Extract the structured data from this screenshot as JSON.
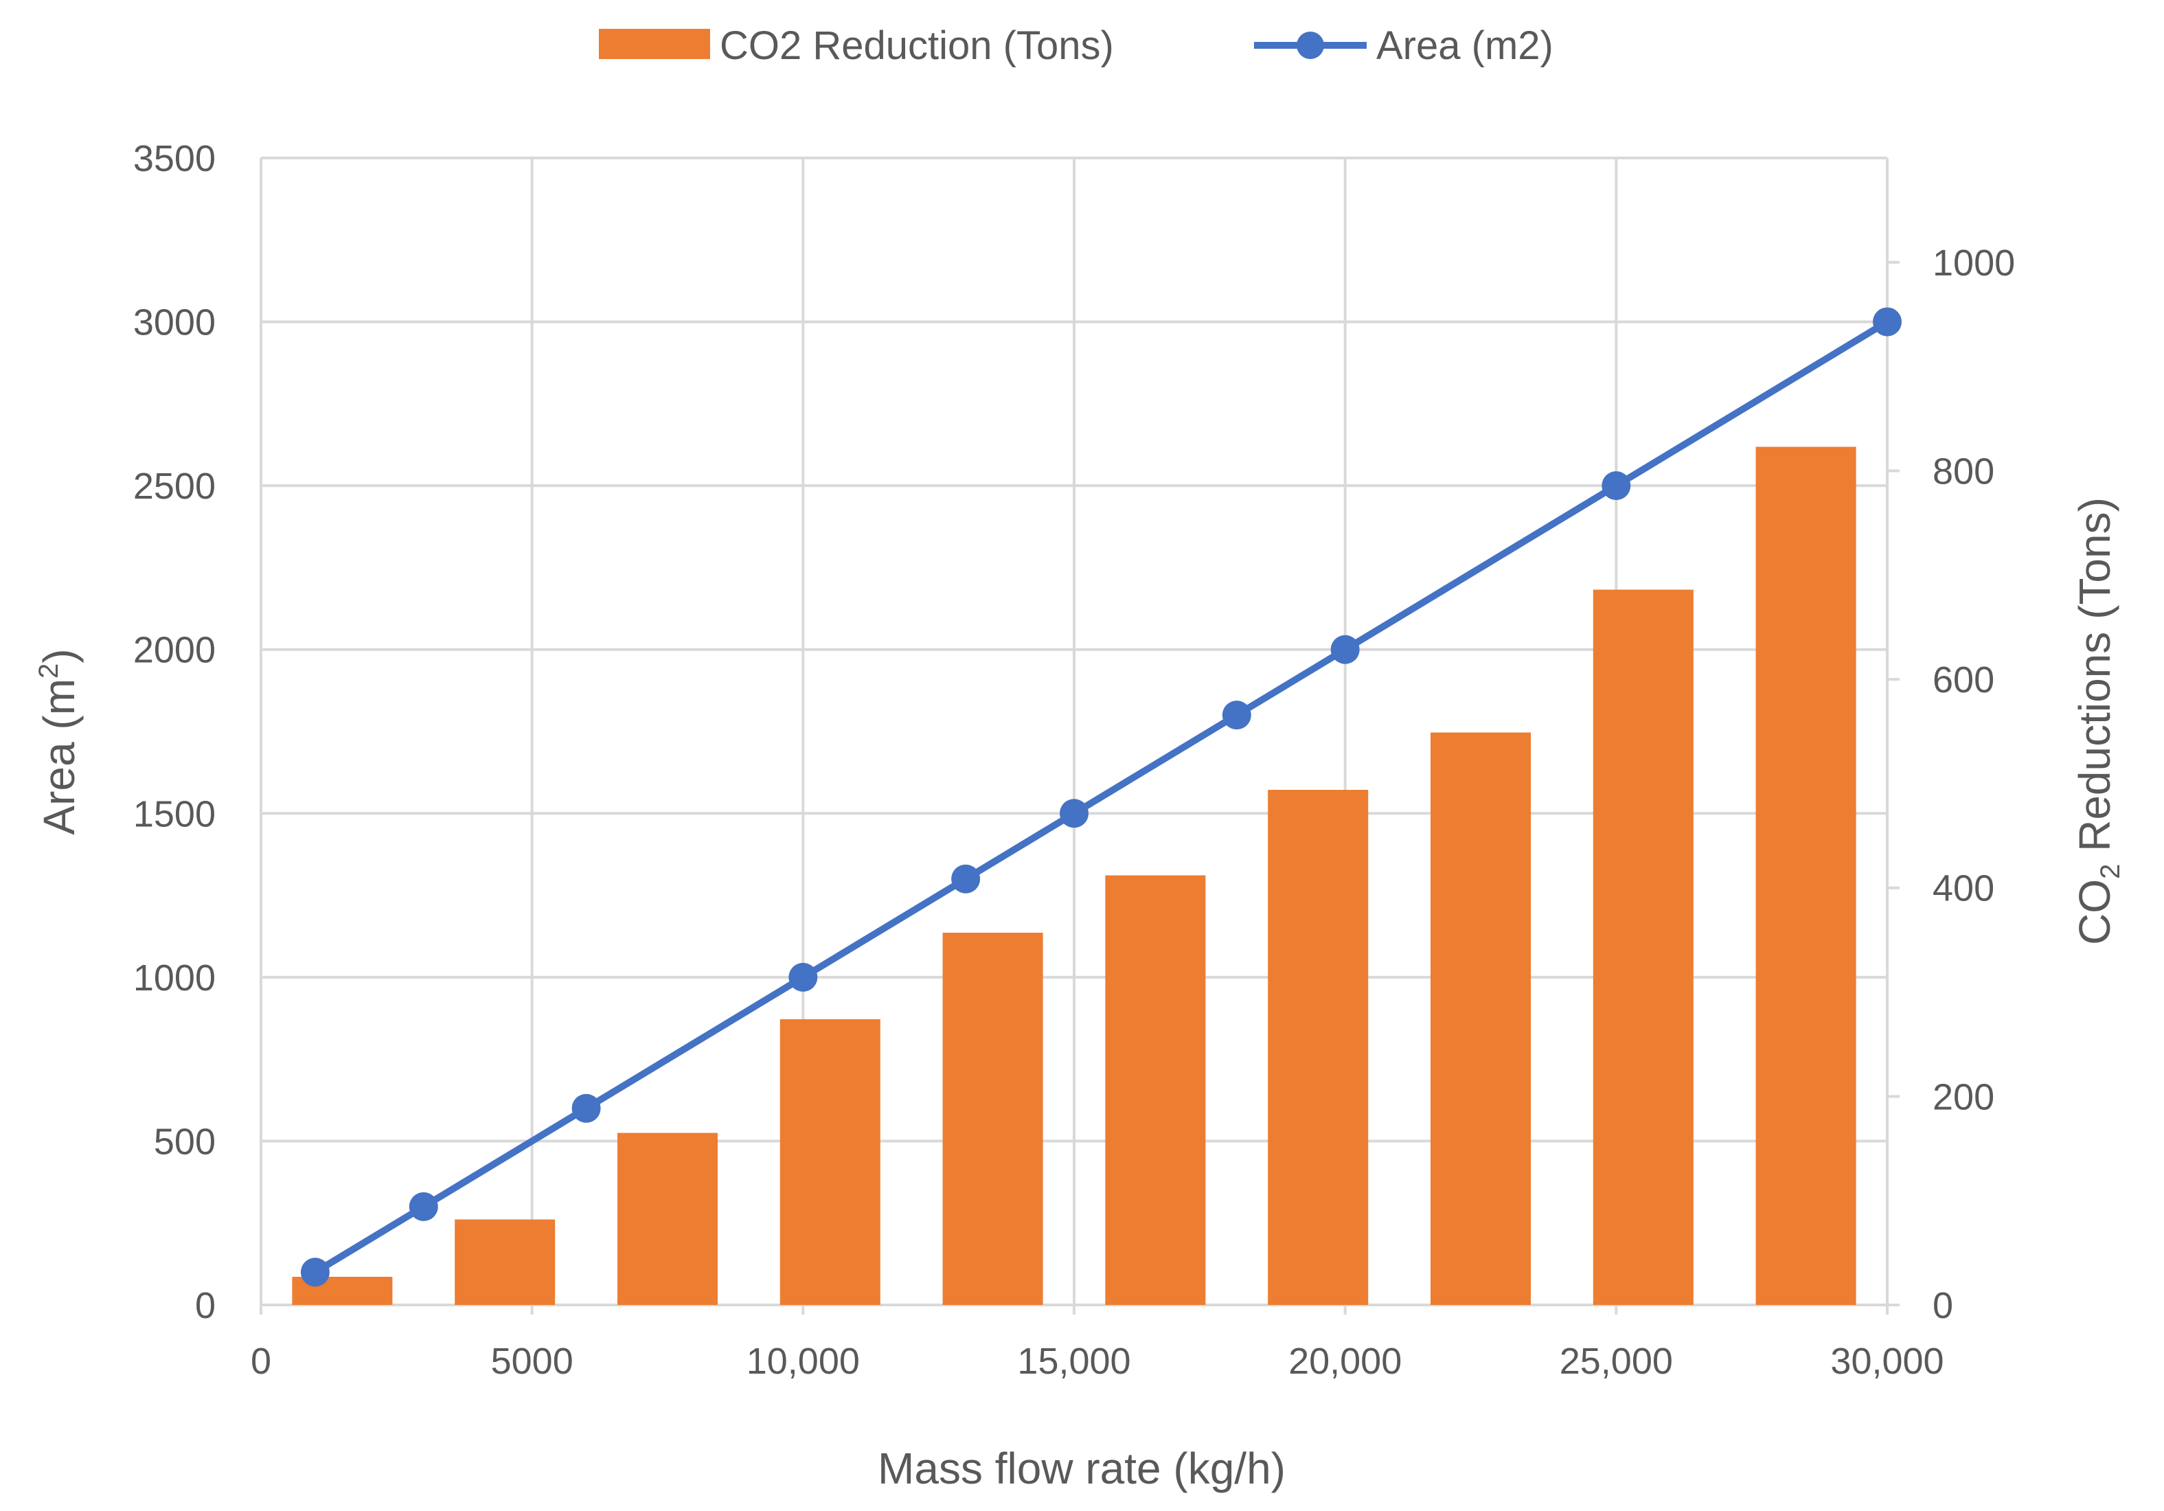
{
  "chart_data": {
    "type": "bar+line",
    "legend": [
      {
        "name": "CO2 Reduction (Tons)",
        "symbol": "bar"
      },
      {
        "name": "Area (m2)",
        "symbol": "line-marker"
      }
    ],
    "x_axis": {
      "title": "Mass flow rate (kg/h)",
      "range": [
        0,
        30000
      ],
      "ticks": [
        0,
        5000,
        10000,
        15000,
        20000,
        25000,
        30000
      ],
      "tick_labels": [
        "0",
        "5000",
        "10,000",
        "15,000",
        "20,000",
        "25,000",
        "30,000"
      ]
    },
    "y_left": {
      "title_main": "Area (m",
      "title_sup": "2",
      "title_end": ")",
      "range": [
        0,
        3500
      ],
      "ticks": [
        0,
        500,
        1000,
        1500,
        2000,
        2500,
        3000,
        3500
      ],
      "tick_labels": [
        "0",
        "500",
        "1000",
        "1500",
        "2000",
        "2500",
        "3000",
        "3500"
      ]
    },
    "y_right": {
      "title_main": "CO",
      "title_sub": "2",
      "title_end": " Reductions (Tons)",
      "range": [
        0,
        1100
      ],
      "ticks": [
        0,
        200,
        400,
        600,
        800,
        1000
      ],
      "tick_labels": [
        "0",
        "200",
        "400",
        "600",
        "800",
        "1000"
      ]
    },
    "bar_series": {
      "name": "CO2 Reduction (Tons)",
      "axis": "right",
      "color": "#ED7D31",
      "x": [
        1500,
        4500,
        7500,
        10500,
        13500,
        16500,
        19500,
        22500,
        25500,
        28500
      ],
      "values": [
        27,
        82,
        165,
        274,
        357,
        412,
        494,
        549,
        686,
        823
      ]
    },
    "line_series": {
      "name": "Area (m2)",
      "axis": "left",
      "color": "#4472C4",
      "x": [
        1000,
        3000,
        6000,
        10000,
        13000,
        15000,
        18000,
        20000,
        25000,
        30000
      ],
      "values": [
        100,
        300,
        600,
        1000,
        1300,
        1500,
        1800,
        2000,
        2500,
        3000
      ]
    },
    "grid": true
  }
}
